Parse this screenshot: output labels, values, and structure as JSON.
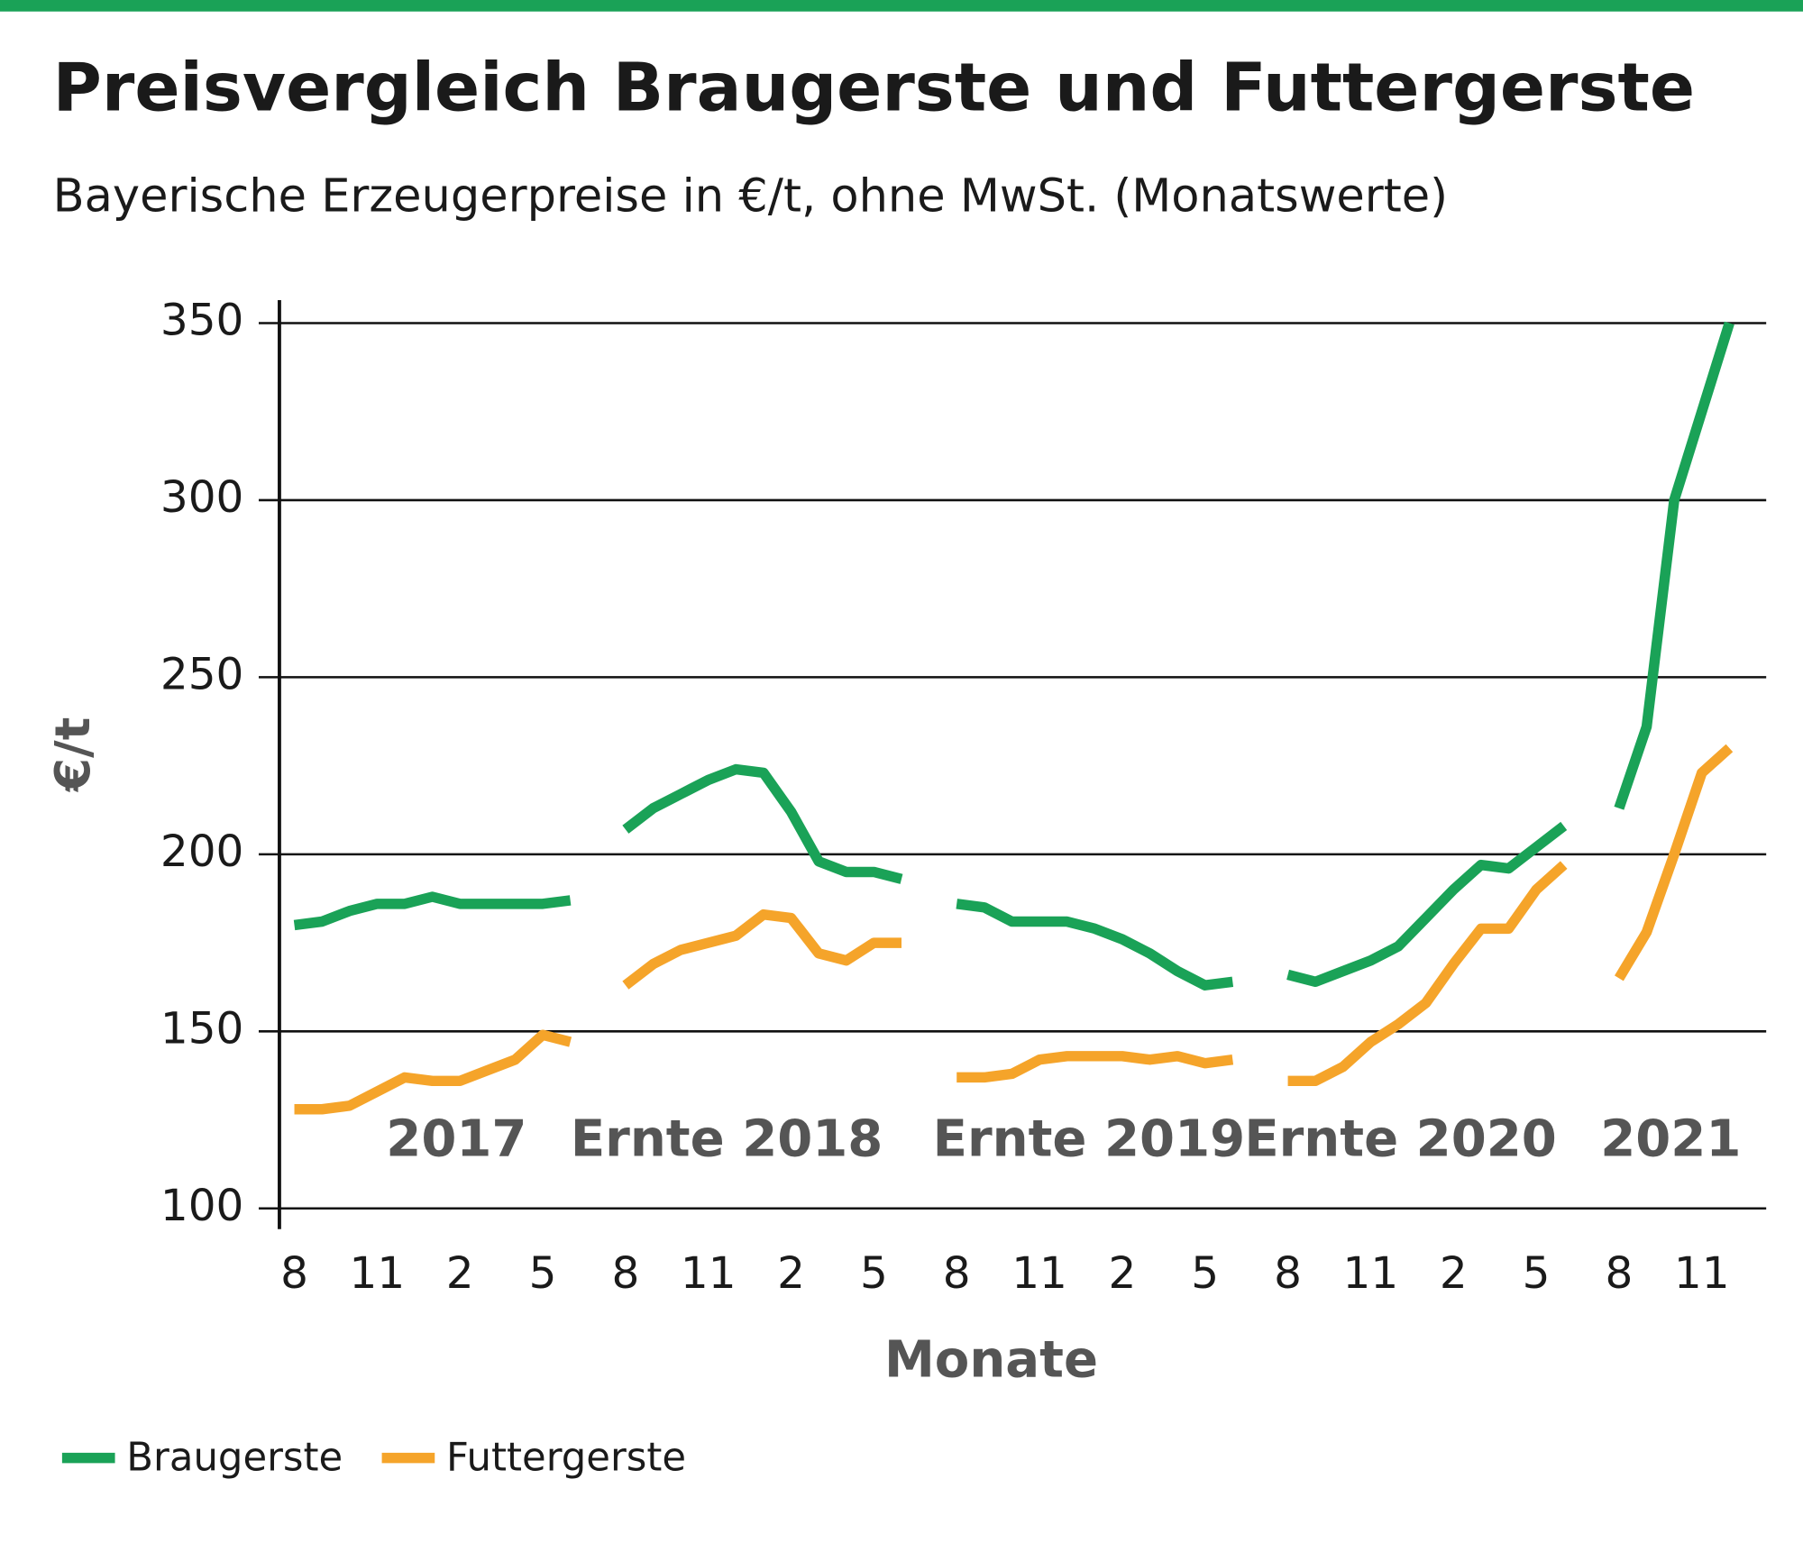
{
  "chart_data": {
    "type": "line",
    "title": "Preisvergleich Braugerste und Futtergerste",
    "subtitle": "Bayerische Erzeugerpreise in €/t, ohne MwSt. (Monatswerte)",
    "y_label": "€/t",
    "x_label": "Monate",
    "annotations": [
      "2017",
      "Ernte 2018",
      "Ernte 2019",
      "Ernte 2020",
      "2021"
    ],
    "categories": [
      "8",
      null,
      null,
      "11",
      null,
      null,
      "2",
      null,
      null,
      "5",
      null,
      null,
      "8",
      null,
      null,
      "11",
      null,
      null,
      "2",
      null,
      null,
      "5",
      null,
      null,
      "8",
      null,
      null,
      "11",
      null,
      null,
      "2",
      null,
      null,
      "5",
      null,
      null,
      "8",
      null,
      null,
      "11",
      null,
      null,
      "2",
      null,
      null,
      "5",
      null,
      null,
      "8",
      null,
      null,
      "11",
      null
    ],
    "series": [
      {
        "name": "Braugerste",
        "color": "#1aa257",
        "values": [
          180,
          181,
          184,
          186,
          186,
          188,
          186,
          186,
          186,
          186,
          187,
          null,
          207,
          213,
          217,
          221,
          224,
          223,
          212,
          198,
          195,
          195,
          193,
          null,
          186,
          185,
          181,
          181,
          181,
          179,
          176,
          172,
          167,
          163,
          164,
          null,
          166,
          164,
          167,
          170,
          174,
          182,
          190,
          197,
          196,
          202,
          208,
          null,
          213,
          236,
          300,
          325,
          350
        ]
      },
      {
        "name": "Futtergerste",
        "color": "#f5a42a",
        "values": [
          128,
          128,
          129,
          133,
          137,
          136,
          136,
          139,
          142,
          149,
          147,
          null,
          163,
          169,
          173,
          175,
          177,
          183,
          182,
          172,
          170,
          175,
          175,
          null,
          137,
          137,
          138,
          142,
          143,
          143,
          143,
          142,
          143,
          141,
          142,
          null,
          136,
          136,
          140,
          147,
          152,
          158,
          169,
          179,
          179,
          190,
          197,
          null,
          165,
          178,
          200,
          223,
          230
        ]
      }
    ],
    "ylim": [
      100,
      350
    ],
    "yticks": [
      100,
      150,
      200,
      250,
      300,
      350
    ],
    "grid": true,
    "legend": "bottom-left"
  }
}
